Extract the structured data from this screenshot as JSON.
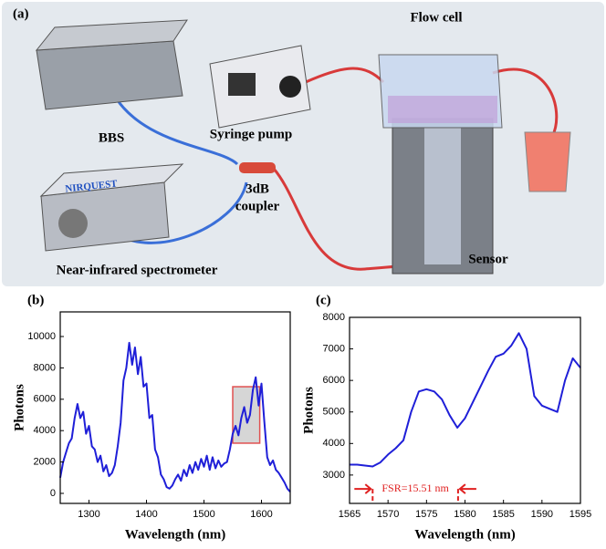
{
  "diagram": {
    "panel_label": "(a)",
    "labels": {
      "bbs": "BBS",
      "syringe": "Syringe pump",
      "flow_cell": "Flow cell",
      "coupler_1": "3dB",
      "coupler_2": "coupler",
      "spectrometer": "Near-infrared spectrometer",
      "sensor": "Sensor",
      "brand": "NIRQUEST"
    }
  },
  "chart_data": [
    {
      "type": "line",
      "panel_label": "(b)",
      "xlabel": "Wavelength (nm)",
      "ylabel": "Photons",
      "xlim": [
        1250,
        1650
      ],
      "ylim": [
        -640,
        11570
      ],
      "xticks": [
        1300,
        1400,
        1500,
        1600
      ],
      "yticks": [
        0,
        2000,
        4000,
        6000,
        8000,
        10000
      ],
      "x": [
        1250,
        1255,
        1260,
        1265,
        1270,
        1275,
        1280,
        1285,
        1290,
        1295,
        1300,
        1305,
        1310,
        1315,
        1320,
        1325,
        1330,
        1335,
        1340,
        1345,
        1350,
        1355,
        1360,
        1365,
        1370,
        1375,
        1380,
        1385,
        1390,
        1395,
        1400,
        1405,
        1410,
        1415,
        1420,
        1425,
        1430,
        1435,
        1440,
        1445,
        1450,
        1455,
        1460,
        1465,
        1470,
        1475,
        1480,
        1485,
        1490,
        1495,
        1500,
        1505,
        1510,
        1515,
        1520,
        1525,
        1530,
        1535,
        1540,
        1545,
        1550,
        1555,
        1560,
        1565,
        1570,
        1575,
        1580,
        1585,
        1590,
        1595,
        1600,
        1605,
        1610,
        1615,
        1620,
        1625,
        1630,
        1635,
        1640,
        1645,
        1650
      ],
      "series": [
        {
          "name": "Photons",
          "color": "#1f1fd8",
          "values": [
            1000,
            2000,
            2600,
            3200,
            3500,
            4800,
            5700,
            4800,
            5200,
            3800,
            4300,
            3000,
            2800,
            2000,
            2400,
            1400,
            1800,
            1100,
            1300,
            1800,
            3000,
            4500,
            7200,
            8000,
            9600,
            8200,
            9300,
            7600,
            8700,
            6800,
            7000,
            4800,
            5000,
            2800,
            2300,
            1200,
            900,
            400,
            300,
            500,
            900,
            1200,
            800,
            1500,
            1100,
            1800,
            1300,
            2000,
            1500,
            2200,
            1700,
            2400,
            1500,
            2300,
            1600,
            2100,
            1700,
            1900,
            2000,
            2800,
            3800,
            4300,
            3700,
            4800,
            5500,
            4500,
            5000,
            6600,
            7400,
            5600,
            7000,
            4600,
            2300,
            1800,
            2100,
            1500,
            1300,
            1000,
            700,
            300,
            100
          ]
        }
      ],
      "highlight": {
        "xlim": [
          1550,
          1597
        ],
        "ylim": [
          3200,
          6800
        ],
        "color": "#e05050"
      }
    },
    {
      "type": "line",
      "panel_label": "(c)",
      "xlabel": "Wavelength (nm)",
      "ylabel": "Photons",
      "xlim": [
        1565,
        1595
      ],
      "ylim": [
        2100,
        8000
      ],
      "xticks": [
        1565,
        1570,
        1575,
        1580,
        1585,
        1590,
        1595
      ],
      "yticks": [
        3000,
        4000,
        5000,
        6000,
        7000,
        8000
      ],
      "x": [
        1565,
        1566,
        1567,
        1568,
        1569,
        1570,
        1571,
        1572,
        1573,
        1574,
        1575,
        1576,
        1577,
        1578,
        1579,
        1580,
        1581,
        1582,
        1583,
        1584,
        1585,
        1586,
        1587,
        1588,
        1589,
        1590,
        1591,
        1592,
        1593,
        1594,
        1595
      ],
      "series": [
        {
          "name": "Photons",
          "color": "#1f1fd8",
          "values": [
            3330,
            3330,
            3300,
            3270,
            3400,
            3650,
            3850,
            4100,
            5000,
            5650,
            5720,
            5650,
            5400,
            4900,
            4500,
            4800,
            5300,
            5800,
            6300,
            6750,
            6850,
            7100,
            7500,
            7000,
            5500,
            5200,
            5100,
            5000,
            6000,
            6700,
            6400
          ]
        }
      ],
      "annotation": {
        "text": "FSR=15.51 nm",
        "x": [
          1568,
          1579.1
        ],
        "y": 2560,
        "color": "#e02020"
      }
    }
  ]
}
